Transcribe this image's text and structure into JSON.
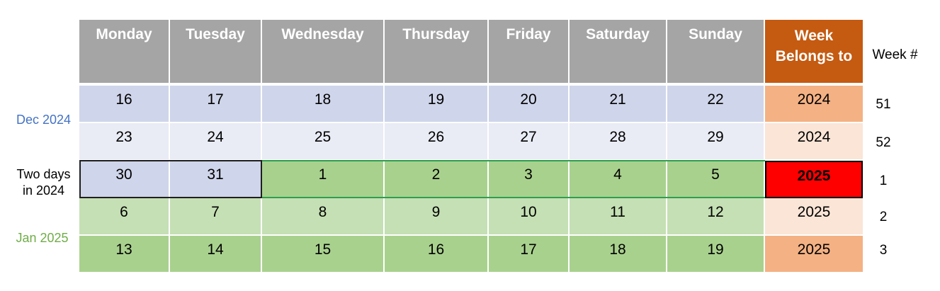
{
  "colors": {
    "header_gray": "#a5a5a5",
    "header_orange": "#c55a11",
    "blue_dark": "#cfd5ea",
    "blue_light": "#e9ebf5",
    "green_dark": "#a9d18e",
    "green_light": "#c5e0b4",
    "orange_dark": "#f4b183",
    "orange_light": "#fbe5d6",
    "red": "#ff0000",
    "dec_label": "#4472c4",
    "jan_label": "#70ad47"
  },
  "headers": [
    "Monday",
    "Tuesday",
    "Wednesday",
    "Thursday",
    "Friday",
    "Saturday",
    "Sunday"
  ],
  "belongs_header": [
    "Week",
    "Belongs to"
  ],
  "week_col_header": "Week #",
  "labels": {
    "dec": "Dec 2024",
    "two_days": [
      "Two days",
      "in 2024"
    ],
    "jan": "Jan 2025"
  },
  "rows": [
    {
      "days": [
        "16",
        "17",
        "18",
        "19",
        "20",
        "21",
        "22"
      ],
      "year": "2024",
      "week": "51"
    },
    {
      "days": [
        "23",
        "24",
        "25",
        "26",
        "27",
        "28",
        "29"
      ],
      "year": "2024",
      "week": "52"
    },
    {
      "days": [
        "30",
        "31",
        "1",
        "2",
        "3",
        "4",
        "5"
      ],
      "year": "2025",
      "week": "1"
    },
    {
      "days": [
        "6",
        "7",
        "8",
        "9",
        "10",
        "11",
        "12"
      ],
      "year": "2025",
      "week": "2"
    },
    {
      "days": [
        "13",
        "14",
        "15",
        "16",
        "17",
        "18",
        "19"
      ],
      "year": "2025",
      "week": "3"
    }
  ]
}
